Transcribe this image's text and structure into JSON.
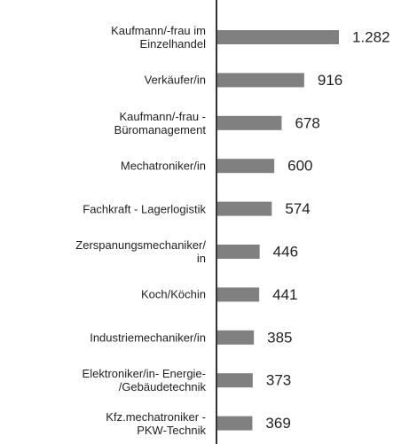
{
  "chart_data": {
    "type": "barh",
    "categories": [
      "Kaufmann/-frau im\nEinzelhandel",
      "Verkäufer/in",
      "Kaufmann/-frau -\nBüromanagement",
      "Mechatroniker/in",
      "Fachkraft - Lagerlogistik",
      "Zerspanungsmechaniker/\nin",
      "Koch/Köchin",
      "Industriemechaniker/in",
      "Elektroniker/in- Energie-\n/Gebäudetechnik",
      "Kfz.mechatroniker -\nPKW-Technik"
    ],
    "values": [
      1282,
      916,
      678,
      600,
      574,
      446,
      441,
      385,
      373,
      369
    ],
    "value_labels": [
      "1.282",
      "916",
      "678",
      "600",
      "574",
      "446",
      "441",
      "385",
      "373",
      "369"
    ],
    "color": "#808080"
  }
}
